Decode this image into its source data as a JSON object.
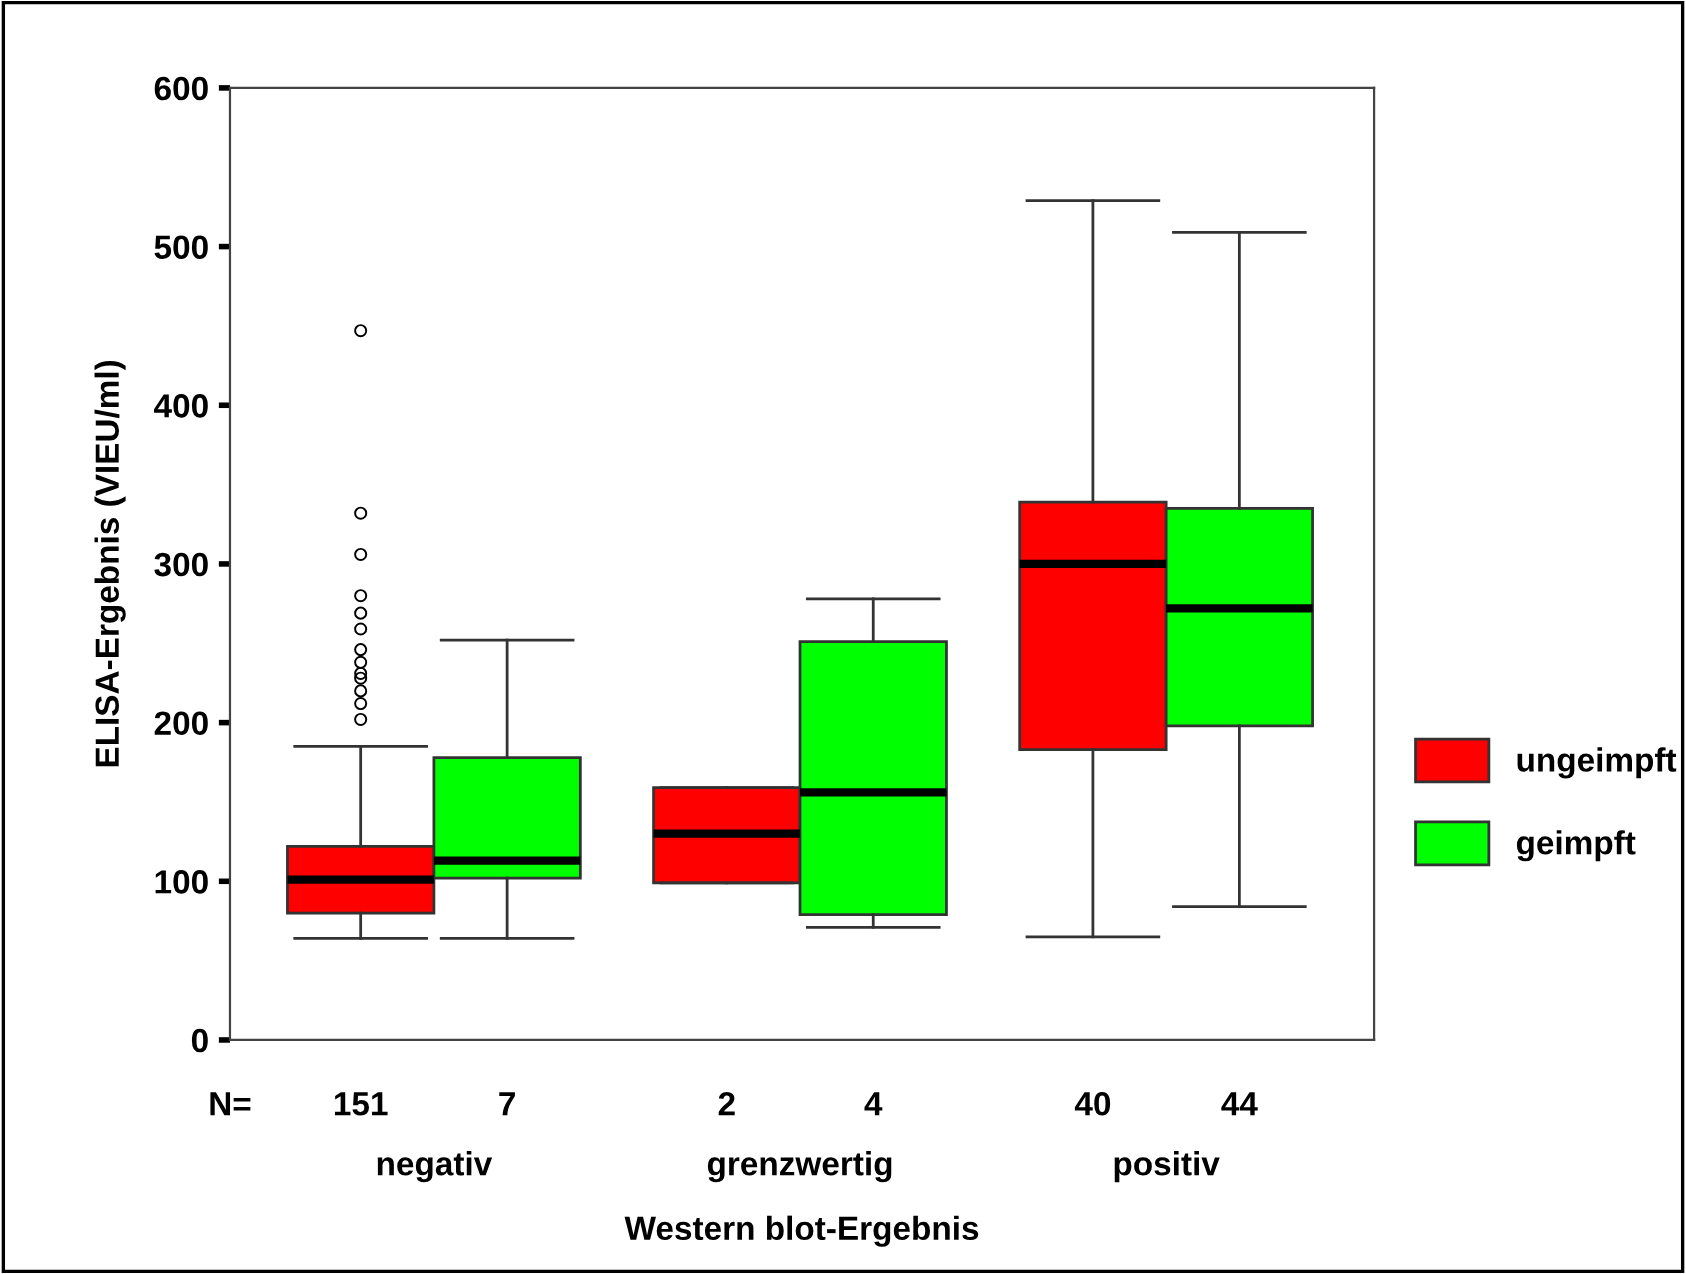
{
  "chart_data": {
    "type": "box",
    "xlabel": "Western blot-Ergebnis",
    "ylabel": "ELISA-Ergebnis (VIEU/ml)",
    "categories": [
      "negativ",
      "grenzwertig",
      "positiv"
    ],
    "series": [
      {
        "name": "ungeimpft",
        "color": "#ff0000",
        "boxes": [
          {
            "low": 64,
            "q1": 80,
            "median": 101,
            "q3": 122,
            "high": 185,
            "outliers": [
              202,
              212,
              220,
              228,
              231,
              238,
              246,
              259,
              269,
              280,
              306,
              332,
              447
            ]
          },
          {
            "low": 99,
            "q1": 99,
            "median": 130,
            "q3": 159,
            "high": 159
          },
          {
            "low": 65,
            "q1": 183,
            "median": 300,
            "q3": 339,
            "high": 529
          }
        ]
      },
      {
        "name": "geimpft",
        "color": "#00ff00",
        "boxes": [
          {
            "low": 64,
            "q1": 102,
            "median": 113,
            "q3": 178,
            "high": 252
          },
          {
            "low": 71,
            "q1": 79,
            "median": 156,
            "q3": 251,
            "high": 278
          },
          {
            "low": 84,
            "q1": 198,
            "median": 272,
            "q3": 335,
            "high": 509
          }
        ]
      }
    ],
    "ylim": [
      0,
      600
    ],
    "yticks": [
      0,
      100,
      200,
      300,
      400,
      500,
      600
    ],
    "annotations": [
      "N=",
      "151",
      "7",
      "2",
      "4",
      "40",
      "44"
    ],
    "legend": "right",
    "grid": false
  }
}
